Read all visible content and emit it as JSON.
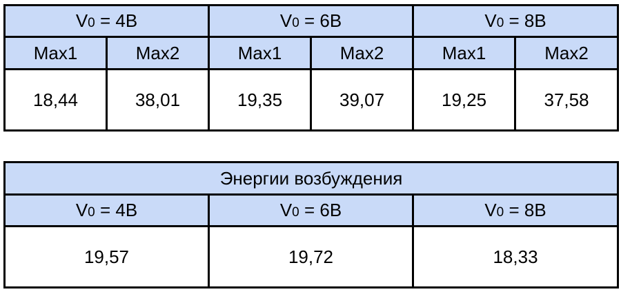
{
  "maxima_table": {
    "groups": [
      {
        "v_symbol": "V",
        "v_subscript": "0",
        "v_rest": " = 4В",
        "col1_label": "Max1",
        "col2_label": "Max2",
        "max1": "18,44",
        "max2": "38,01"
      },
      {
        "v_symbol": "V",
        "v_subscript": "0",
        "v_rest": " = 6В",
        "col1_label": "Max1",
        "col2_label": "Max2",
        "max1": "19,35",
        "max2": "39,07"
      },
      {
        "v_symbol": "V",
        "v_subscript": "0",
        "v_rest": " = 8В",
        "col1_label": "Max1",
        "col2_label": "Max2",
        "max1": "19,25",
        "max2": "37,58"
      }
    ]
  },
  "energy_table": {
    "title": "Энергии возбуждения",
    "columns": [
      {
        "v_symbol": "V",
        "v_subscript": "0",
        "v_rest": " = 4В",
        "value": "19,57"
      },
      {
        "v_symbol": "V",
        "v_subscript": "0",
        "v_rest": " = 6В",
        "value": "19,72"
      },
      {
        "v_symbol": "V",
        "v_subscript": "0",
        "v_rest": " = 8В",
        "value": "18,33"
      }
    ]
  },
  "colors": {
    "header_fill": "#c9daf8",
    "cell_fill": "#ffffff",
    "border": "#000000"
  }
}
